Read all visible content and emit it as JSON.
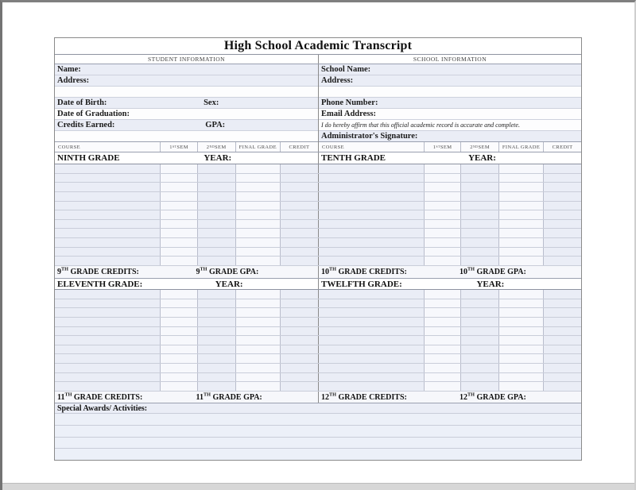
{
  "title": "High School Academic Transcript",
  "student": {
    "section_header": "STUDENT INFORMATION",
    "name_label": "Name:",
    "address_label": "Address:",
    "dob_label": "Date of Birth:",
    "sex_label": "Sex:",
    "graduation_label": "Date of Graduation:",
    "credits_label": "Credits Earned:",
    "gpa_label": "GPA:"
  },
  "school": {
    "section_header": "SCHOOL INFORMATION",
    "name_label": "School Name:",
    "address_label": "Address:",
    "phone_label": "Phone Number:",
    "email_label": "Email Address:",
    "affirmation": "I do hereby affirm that this official academic record is accurate and complete.",
    "signature_label": "Administrator's Signature:"
  },
  "course_columns": {
    "course": "COURSE",
    "sem1": {
      "pre": "1",
      "sup": "ST",
      "post": " SEM"
    },
    "sem2": {
      "pre": "2",
      "sup": "ND",
      "post": " SEM"
    },
    "final": "FINAL GRADE",
    "credit": "CREDIT"
  },
  "grade_sections": {
    "ninth": {
      "title": "NINTH GRADE",
      "year_label": "YEAR:",
      "credits": {
        "pre": "9",
        "sup": "TH",
        "post": " GRADE CREDITS:"
      },
      "gpa": {
        "pre": "9",
        "sup": "TH",
        "post": " GRADE GPA:"
      }
    },
    "tenth": {
      "title": "TENTH GRADE",
      "year_label": "YEAR:",
      "credits": {
        "pre": "10",
        "sup": "TH",
        "post": " GRADE CREDITS:"
      },
      "gpa": {
        "pre": "10",
        "sup": "TH",
        "post": " GRADE GPA:"
      }
    },
    "eleventh": {
      "title": "ELEVENTH GRADE:",
      "year_label": "YEAR:",
      "credits": {
        "pre": "11",
        "sup": "TH",
        "post": " GRADE CREDITS:"
      },
      "gpa": {
        "pre": "11",
        "sup": "TH",
        "post": " GRADE GPA:"
      }
    },
    "twelfth": {
      "title": "TWELFTH GRADE:",
      "year_label": "YEAR:",
      "credits": {
        "pre": "12",
        "sup": "TH",
        "post": " GRADE CREDITS:"
      },
      "gpa": {
        "pre": "12",
        "sup": "TH",
        "post": " GRADE GPA:"
      }
    }
  },
  "awards_label": "Special Awards/ Activities:",
  "colors": {
    "row_tint": "#eaedf6",
    "grid_line": "#c9cdd9",
    "outer_border": "#8a8a8a"
  }
}
